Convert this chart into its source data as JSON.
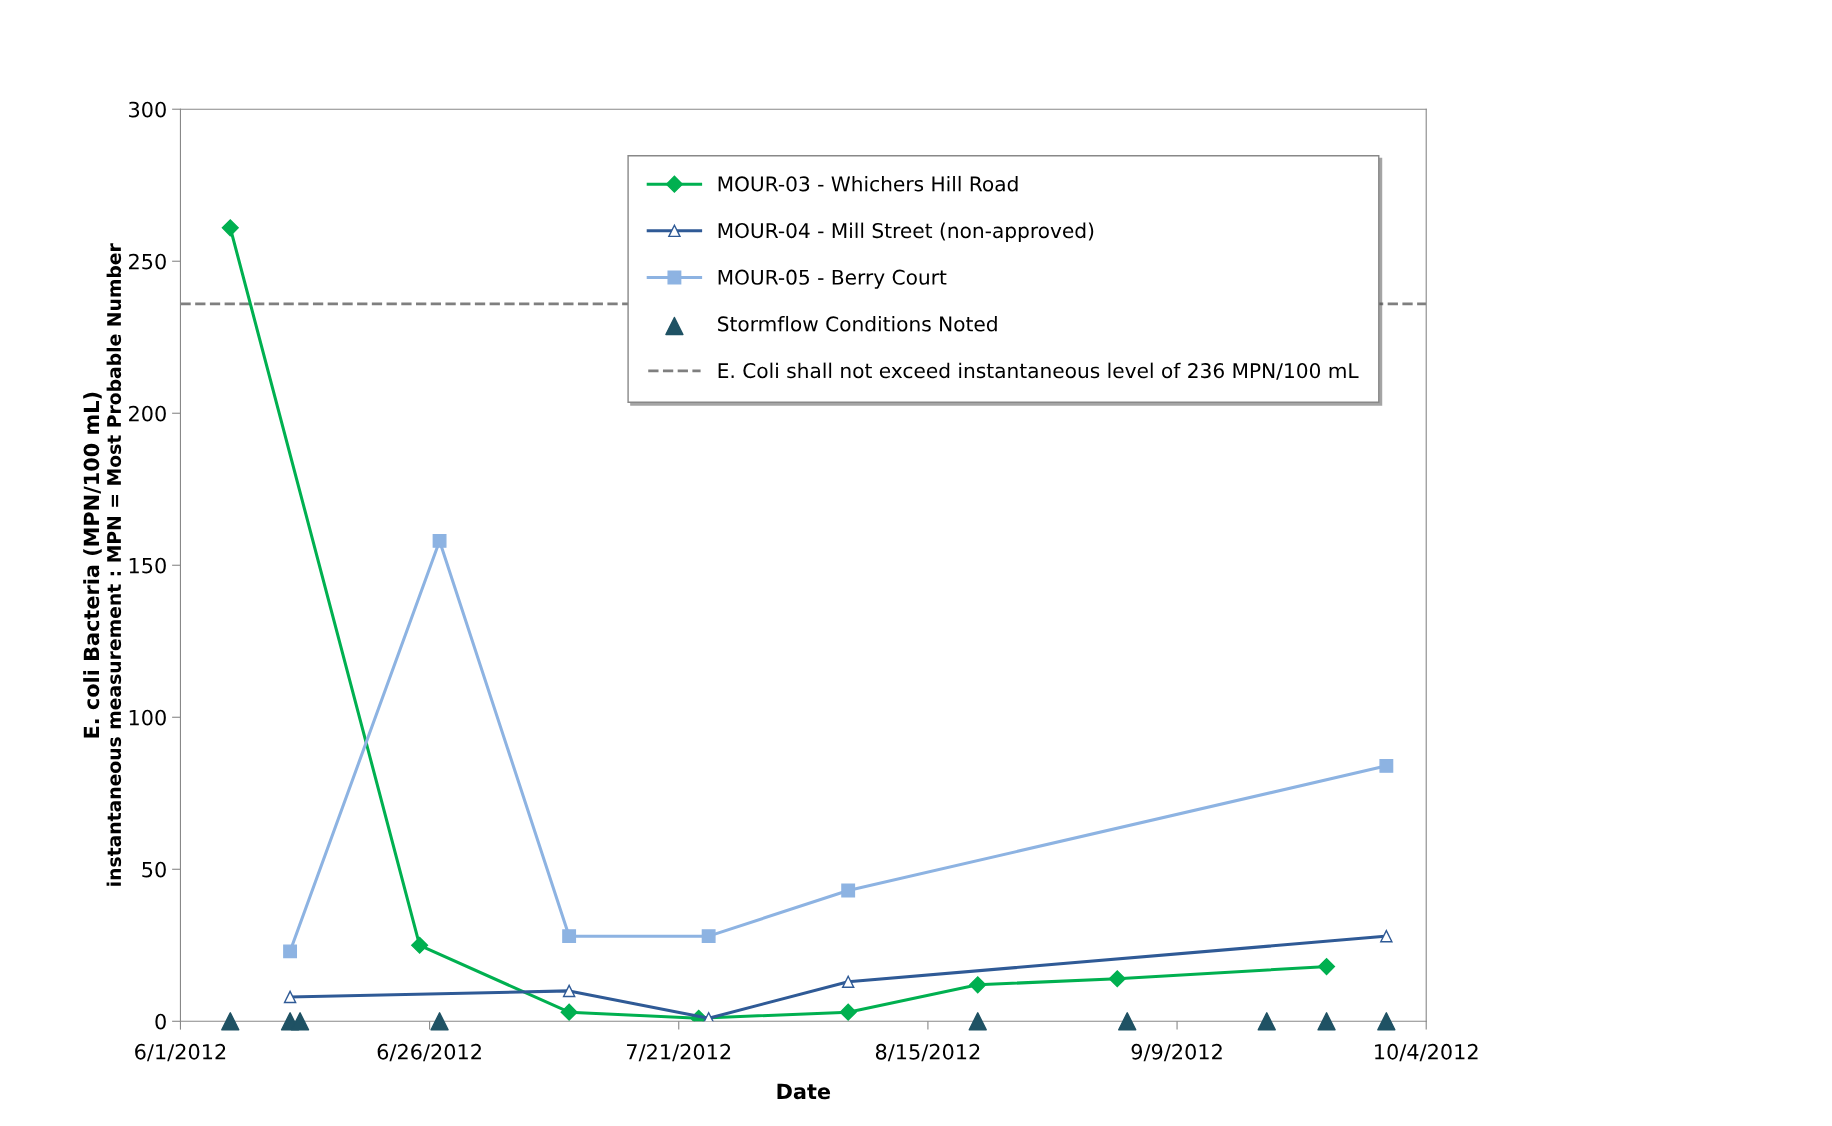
{
  "chart_data": {
    "type": "line",
    "xlabel": "Date",
    "ylabel": "E. coli Bacteria (MPN/100 mL)\ninstantaneous measurement : MPN = Most Probable Number",
    "xlim": [
      "2012-06-01",
      "2012-10-04"
    ],
    "xticks": [
      {
        "value": "2012-06-01",
        "label": "6/1/2012"
      },
      {
        "value": "2012-06-26",
        "label": "6/26/2012"
      },
      {
        "value": "2012-07-21",
        "label": "7/21/2012"
      },
      {
        "value": "2012-08-15",
        "label": "8/15/2012"
      },
      {
        "value": "2012-09-09",
        "label": "9/9/2012"
      },
      {
        "value": "2012-10-04",
        "label": "10/4/2012"
      }
    ],
    "ylim": [
      0,
      300
    ],
    "yticks": [
      0,
      50,
      100,
      150,
      200,
      250,
      300
    ],
    "grid": false,
    "legend": "top right",
    "line_style": "solid",
    "series": [
      {
        "name": "MOUR-03 - Whichers Hill Road",
        "color": "#00b050",
        "marker": "diamond",
        "x": [
          "2012-06-06",
          "2012-06-25",
          "2012-07-10",
          "2012-07-23",
          "2012-08-07",
          "2012-08-20",
          "2012-09-03",
          "2012-09-24"
        ],
        "values": [
          261,
          25,
          3,
          1,
          3,
          12,
          14,
          18
        ]
      },
      {
        "name": "MOUR-04 - Mill Street (non-approved)",
        "color": "#2f5a96",
        "marker": "triangle",
        "x": [
          "2012-06-12",
          "2012-07-10",
          "2012-07-24",
          "2012-08-07",
          "2012-09-30"
        ],
        "values": [
          8,
          10,
          1,
          13,
          28
        ]
      },
      {
        "name": "MOUR-05 - Berry Court",
        "color": "#8db3e2",
        "marker": "square",
        "x": [
          "2012-06-12",
          "2012-06-27",
          "2012-07-10",
          "2012-07-24",
          "2012-08-07",
          "2012-09-30"
        ],
        "values": [
          23,
          158,
          28,
          28,
          43,
          84
        ]
      },
      {
        "name": "Stormflow Conditions Noted",
        "type": "scatter",
        "color": "#1f5264",
        "marker": "triangle",
        "x": [
          "2012-06-06",
          "2012-06-12",
          "2012-06-13",
          "2012-06-27",
          "2012-08-20",
          "2012-09-04",
          "2012-09-18",
          "2012-09-24",
          "2012-09-30"
        ],
        "values": [
          0,
          0,
          0,
          0,
          0,
          0,
          0,
          0,
          0
        ]
      }
    ],
    "ref_lines": [
      {
        "axis": "y",
        "value": 236,
        "label": "E. Coli shall not exceed instantaneous level of 236 MPN/100 mL",
        "color": "#7f7f7f",
        "line_style": "dashed"
      }
    ]
  }
}
